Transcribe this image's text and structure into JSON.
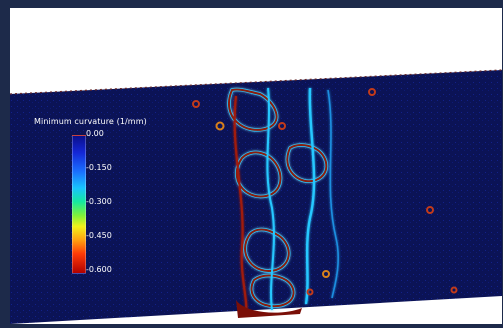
{
  "colorbar": {
    "title": "Minimum curvature (1/mm)",
    "ticks": [
      "0.00",
      "-0.150",
      "-0.300",
      "-0.450",
      "-0.600"
    ],
    "range": [
      -0.6,
      0.0
    ]
  },
  "colors": {
    "frame": "#1d2a4a",
    "background": "#0a1150",
    "low": "#8b0000",
    "high": "#0a0f8a"
  }
}
